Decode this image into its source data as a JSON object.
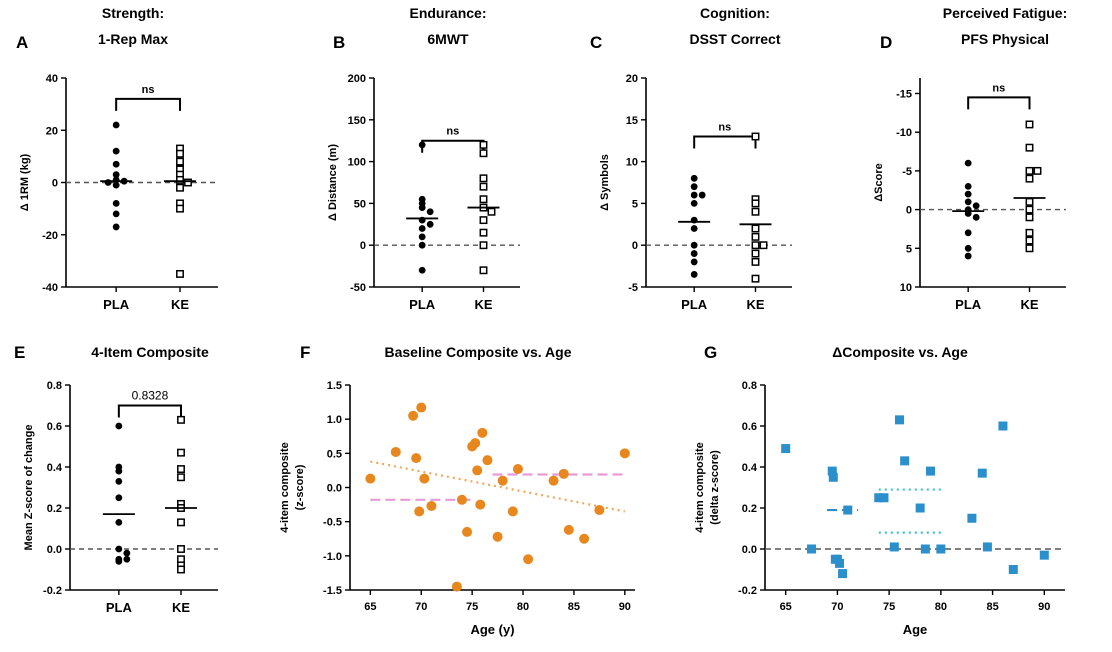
{
  "colors": {
    "ink": "#000000",
    "dashed": "#555555",
    "orange": "#E8871E",
    "pink": "#E79BD6",
    "blue": "#2A8FCB",
    "cyan": "#3BC4C0",
    "orangeFit": "#F2A65A"
  },
  "panels": [
    {
      "letter": "A",
      "title": [
        "Strength:",
        "1-Rep Max"
      ],
      "ylabel": "Δ 1RM (kg)",
      "categories": [
        "PLA",
        "KE"
      ],
      "ylim": [
        -40,
        40
      ],
      "yticks": [
        -40,
        -20,
        0,
        20,
        40
      ],
      "reversed": false,
      "sig": "ns",
      "sig_y": 32,
      "zero_line": true,
      "groups": [
        {
          "name": "PLA",
          "marker": "filled",
          "mean": 0.5,
          "values": [
            22,
            12,
            7,
            3,
            1,
            0.5,
            0,
            -1,
            -8,
            -12,
            -17
          ]
        },
        {
          "name": "KE",
          "marker": "open",
          "mean": 0.5,
          "values": [
            13,
            11,
            8,
            5,
            3,
            1,
            0,
            -2,
            -8,
            -10,
            -35
          ]
        }
      ]
    },
    {
      "letter": "B",
      "title": [
        "Endurance:",
        "6MWT"
      ],
      "ylabel": "Δ Distance (m)",
      "categories": [
        "PLA",
        "KE"
      ],
      "ylim": [
        -50,
        200
      ],
      "yticks": [
        -50,
        0,
        50,
        100,
        150,
        200
      ],
      "reversed": false,
      "sig": "ns",
      "sig_y": 125,
      "zero_line": true,
      "groups": [
        {
          "name": "PLA",
          "marker": "filled",
          "mean": 32,
          "values": [
            120,
            55,
            50,
            45,
            40,
            30,
            25,
            20,
            10,
            0,
            -30
          ]
        },
        {
          "name": "KE",
          "marker": "open",
          "mean": 45,
          "values": [
            120,
            110,
            80,
            70,
            55,
            45,
            40,
            30,
            15,
            0,
            -30
          ]
        }
      ]
    },
    {
      "letter": "C",
      "title": [
        "Cognition:",
        "DSST Correct"
      ],
      "ylabel": "Δ Symbols",
      "categories": [
        "PLA",
        "KE"
      ],
      "ylim": [
        -5,
        20
      ],
      "yticks": [
        -5,
        0,
        5,
        10,
        15,
        20
      ],
      "reversed": false,
      "sig": "ns",
      "sig_y": 13,
      "zero_line": true,
      "groups": [
        {
          "name": "PLA",
          "marker": "filled",
          "mean": 2.8,
          "values": [
            8,
            7,
            6,
            6,
            5,
            3,
            2,
            0,
            -1,
            -2,
            -3.5
          ]
        },
        {
          "name": "KE",
          "marker": "open",
          "mean": 2.5,
          "values": [
            13,
            5.5,
            5,
            4,
            2,
            1,
            0,
            -1,
            -2,
            -4,
            0
          ]
        }
      ]
    },
    {
      "letter": "D",
      "title": [
        "Perceived Fatigue:",
        "PFS Physical"
      ],
      "ylabel": "ΔScore",
      "categories": [
        "PLA",
        "KE"
      ],
      "ylim": [
        -17,
        10
      ],
      "yticks": [
        -15,
        -10,
        -5,
        0,
        5,
        10
      ],
      "ytick_labels": [
        "-15",
        "-10",
        "-5",
        "0",
        "5",
        "10"
      ],
      "reversed": true,
      "sig": "ns",
      "sig_y": -14.5,
      "zero_line": true,
      "groups": [
        {
          "name": "PLA",
          "marker": "filled",
          "mean": 0.2,
          "values": [
            -6,
            -3,
            -2,
            -1,
            -0.5,
            0,
            0.5,
            1,
            3,
            5,
            6
          ]
        },
        {
          "name": "KE",
          "marker": "open",
          "mean": -1.5,
          "values": [
            -11,
            -8,
            -5,
            -5,
            -4,
            -1,
            0,
            1,
            3,
            4,
            5
          ]
        }
      ]
    },
    {
      "letter": "E",
      "title": [
        "4-Item Composite"
      ],
      "ylabel": "Mean Z-score of change",
      "categories": [
        "PLA",
        "KE"
      ],
      "ylim": [
        -0.2,
        0.8
      ],
      "yticks": [
        -0.2,
        0.0,
        0.2,
        0.4,
        0.6,
        0.8
      ],
      "ytick_labels": [
        "-0.2",
        "0.0",
        "0.2",
        "0.4",
        "0.6",
        "0.8"
      ],
      "reversed": false,
      "sig": "0.8328",
      "sig_y": 0.7,
      "zero_line": true,
      "groups": [
        {
          "name": "PLA",
          "marker": "filled",
          "mean": 0.17,
          "values": [
            0.6,
            0.4,
            0.38,
            0.33,
            0.25,
            0.13,
            0.0,
            -0.02,
            -0.05,
            -0.05,
            -0.06
          ]
        },
        {
          "name": "KE",
          "marker": "open",
          "mean": 0.2,
          "values": [
            0.63,
            0.47,
            0.39,
            0.35,
            0.22,
            0.2,
            0.13,
            0.0,
            -0.05,
            -0.08,
            -0.1
          ]
        }
      ]
    }
  ],
  "chart_data": [
    {
      "type": "scatter",
      "letter": "F",
      "title": "Baseline Composite vs. Age",
      "xlabel": "Age (y)",
      "ylabel": [
        "4-item composite",
        "(z-score)"
      ],
      "xlim": [
        63,
        91
      ],
      "ylim": [
        -1.5,
        1.5
      ],
      "xticks": [
        65,
        70,
        75,
        80,
        85,
        90
      ],
      "yticks": [
        -1.5,
        -1.0,
        -0.5,
        0.0,
        0.5,
        1.0,
        1.5
      ],
      "ytick_labels": [
        "-1.5",
        "-1.0",
        "-0.5",
        "0.0",
        "0.5",
        "1.0",
        "1.5"
      ],
      "series": [
        {
          "x": [
            65,
            67.5,
            69.2,
            69.5,
            69.8,
            70,
            70.3,
            71,
            73.5,
            74,
            74.5,
            75,
            75.3,
            75.5,
            75.8,
            76,
            76.5,
            77.5,
            78,
            79,
            79.5,
            80.5,
            83,
            84,
            84.5,
            86,
            87.5,
            90
          ],
          "y": [
            0.13,
            0.52,
            1.05,
            0.43,
            -0.35,
            1.17,
            0.13,
            -0.27,
            -1.45,
            -0.18,
            -0.65,
            0.6,
            0.65,
            0.25,
            -0.25,
            0.8,
            0.4,
            -0.72,
            0.1,
            -0.35,
            0.27,
            -1.05,
            0.1,
            0.2,
            -0.62,
            -0.75,
            -0.33,
            0.5
          ]
        }
      ],
      "fits": [
        {
          "x": [
            65,
            90
          ],
          "y": [
            0.38,
            -0.35
          ],
          "style": "dotted",
          "color": "orange"
        },
        {
          "x": [
            65,
            75
          ],
          "y": [
            -0.18,
            -0.18
          ],
          "style": "dashed",
          "color": "pink"
        },
        {
          "x": [
            77,
            90
          ],
          "y": [
            0.19,
            0.19
          ],
          "style": "dashed",
          "color": "pink"
        }
      ]
    },
    {
      "type": "scatter",
      "letter": "G",
      "title": "ΔComposite vs. Age",
      "xlabel": "Age",
      "ylabel": [
        "4-item composite",
        "(delta z-score)"
      ],
      "xlim": [
        63,
        92
      ],
      "ylim": [
        -0.2,
        0.8
      ],
      "xticks": [
        65,
        70,
        75,
        80,
        85,
        90
      ],
      "yticks": [
        -0.2,
        0.0,
        0.2,
        0.4,
        0.6,
        0.8
      ],
      "ytick_labels": [
        "-0.2",
        "0.0",
        "0.2",
        "0.4",
        "0.6",
        "0.8"
      ],
      "series": [
        {
          "x": [
            65,
            67.5,
            69.5,
            69.6,
            69.8,
            70,
            70.2,
            70.5,
            71,
            74,
            74.5,
            75.5,
            76,
            76.5,
            78,
            78.5,
            79,
            80,
            83,
            84,
            84.5,
            86,
            87,
            90
          ],
          "y": [
            0.49,
            0.0,
            0.38,
            0.35,
            -0.05,
            -0.05,
            -0.07,
            -0.12,
            0.19,
            0.25,
            0.25,
            0.01,
            0.63,
            0.43,
            0.2,
            0.0,
            0.38,
            0.0,
            0.15,
            0.37,
            0.01,
            0.6,
            -0.1,
            -0.03
          ]
        }
      ],
      "fits": [
        {
          "x": [
            69,
            72
          ],
          "y": [
            0.19,
            0.19
          ],
          "style": "dashed",
          "color": "blue"
        },
        {
          "x": [
            74,
            80
          ],
          "y": [
            0.29,
            0.29
          ],
          "style": "dotted",
          "color": "cyan"
        },
        {
          "x": [
            74,
            80
          ],
          "y": [
            0.08,
            0.08
          ],
          "style": "dotted",
          "color": "cyan"
        }
      ]
    }
  ]
}
